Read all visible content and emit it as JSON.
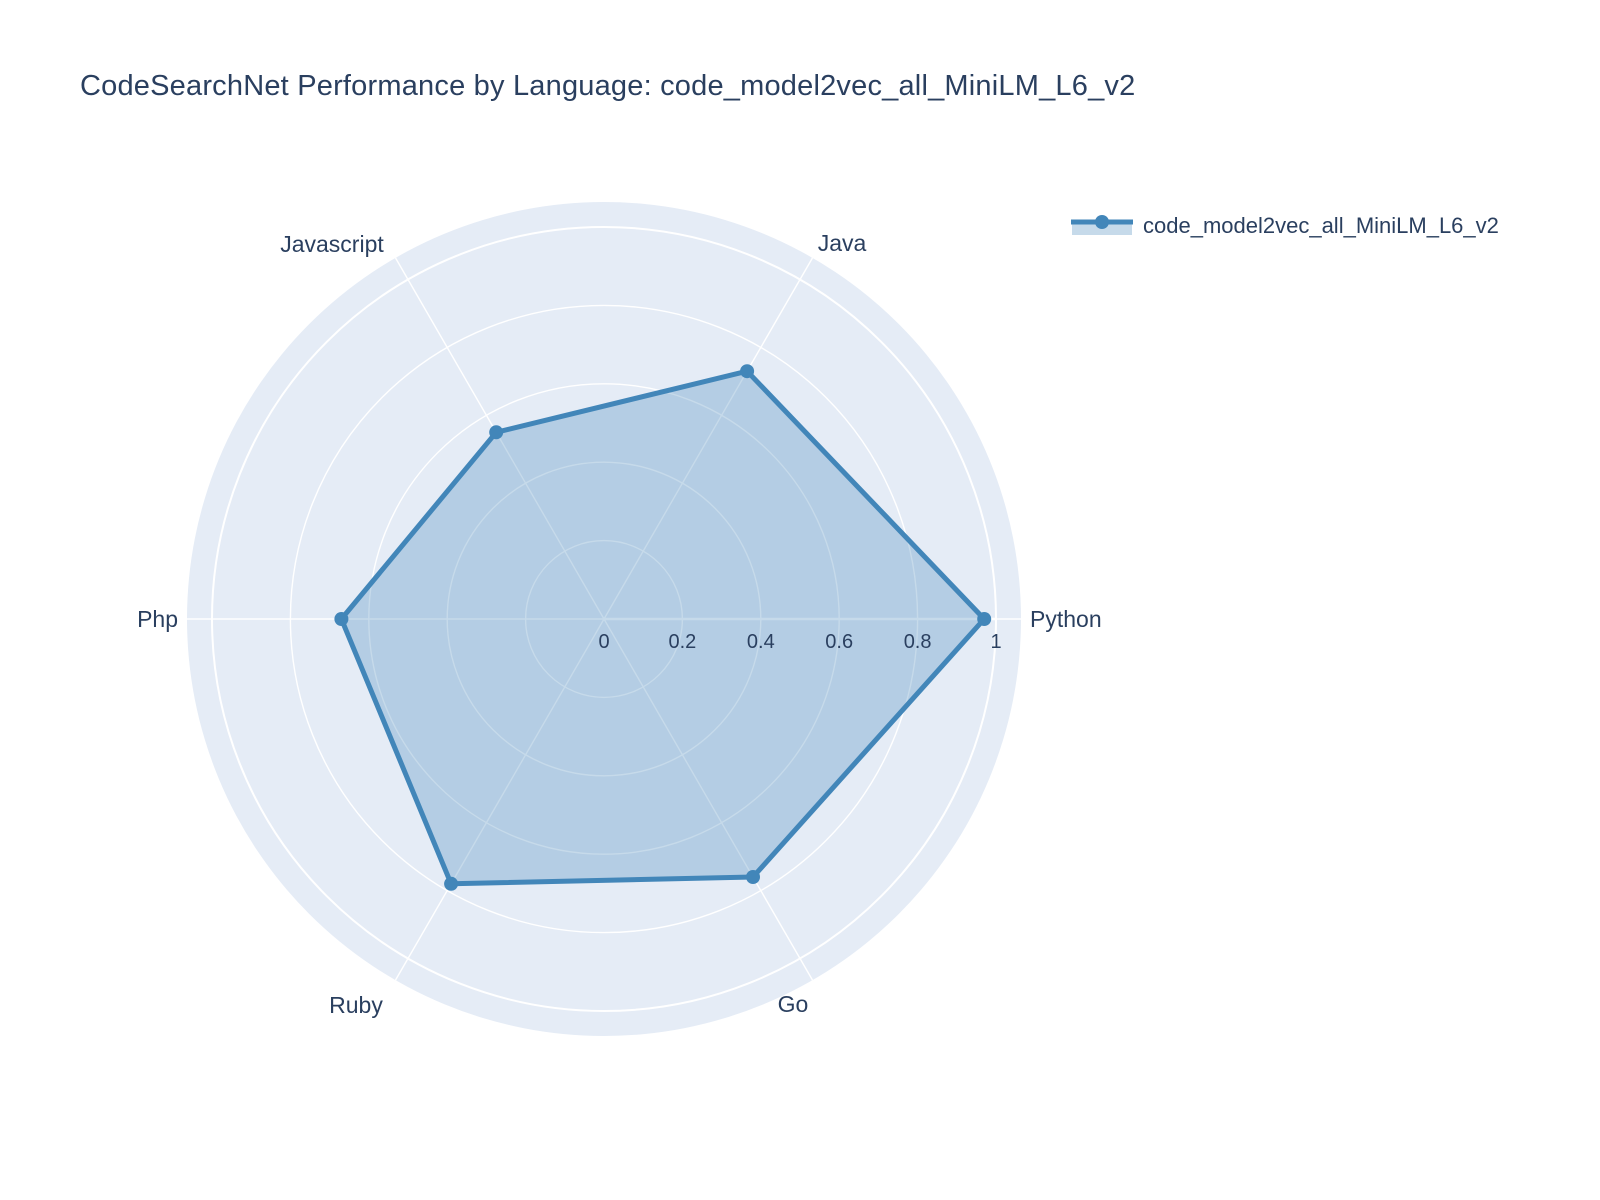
{
  "title": "CodeSearchNet Performance by Language: code_model2vec_all_MiniLM_L6_v2",
  "legend": {
    "label": "code_model2vec_all_MiniLM_L6_v2",
    "position": "top-right"
  },
  "colors": {
    "trace": "#4286b9",
    "trace_fill": "rgba(66,134,185,0.30)",
    "polar_background": "#e5ecf6",
    "grid": "#ffffff",
    "text": "#2a3f5f",
    "page_background": "#ffffff"
  },
  "chart_data": {
    "type": "radar",
    "title": "CodeSearchNet Performance by Language: code_model2vec_all_MiniLM_L6_v2",
    "categories": [
      "Python",
      "Java",
      "Javascript",
      "Php",
      "Ruby",
      "Go"
    ],
    "series": [
      {
        "name": "code_model2vec_all_MiniLM_L6_v2",
        "values": [
          0.97,
          0.73,
          0.55,
          0.67,
          0.78,
          0.76
        ]
      }
    ],
    "radial_ticks": [
      0,
      0.2,
      0.4,
      0.6,
      0.8,
      1
    ],
    "radial_range": [
      0,
      1
    ],
    "angular_start_deg": 0,
    "angular_direction": "counterclockwise",
    "grid": true,
    "legend_position": "top-right"
  }
}
